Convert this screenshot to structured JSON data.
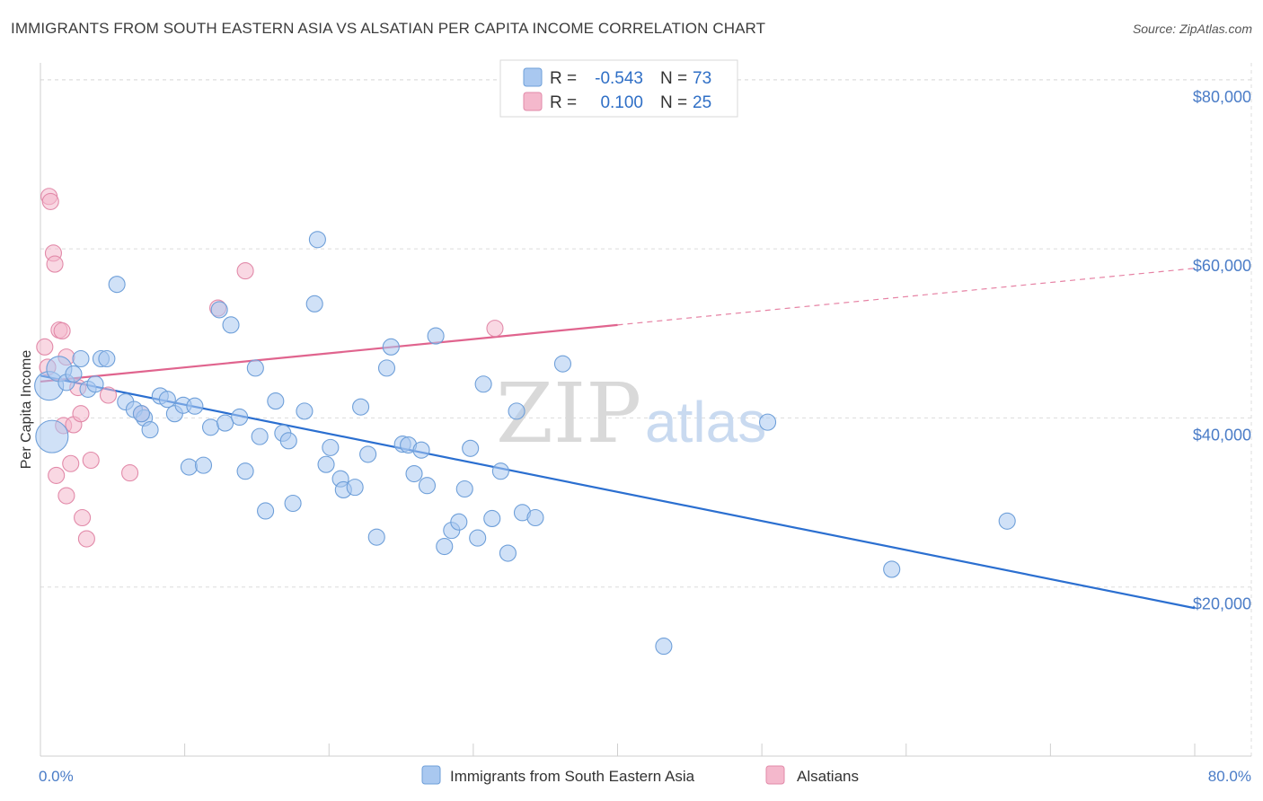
{
  "title": "IMMIGRANTS FROM SOUTH EASTERN ASIA VS ALSATIAN PER CAPITA INCOME CORRELATION CHART",
  "source": "Source: ZipAtlas.com",
  "watermark": {
    "zip": "ZIP",
    "atlas": "atlas"
  },
  "legend": {
    "r_label": "R =",
    "n_label": "N =",
    "rows": [
      {
        "r": "-0.543",
        "n": "73",
        "color": "#a9c8f0"
      },
      {
        "r": "0.100",
        "n": "25",
        "color": "#f4b8cc"
      }
    ]
  },
  "chart_data": {
    "type": "scatter",
    "title": "IMMIGRANTS FROM SOUTH EASTERN ASIA VS ALSATIAN PER CAPITA INCOME CORRELATION CHART",
    "xlabel": "",
    "ylabel": "Per Capita Income",
    "xlim": [
      0,
      80
    ],
    "ylim": [
      0,
      82000
    ],
    "y_ticks": [
      {
        "value": 20000,
        "label": "$20,000"
      },
      {
        "value": 40000,
        "label": "$40,000"
      },
      {
        "value": 60000,
        "label": "$60,000"
      },
      {
        "value": 80000,
        "label": "$80,000"
      }
    ],
    "x_ticks_labels": [
      {
        "value": 0,
        "label": "0.0%"
      },
      {
        "value": 80,
        "label": "80.0%"
      }
    ],
    "grid": true,
    "legend_position": "top-center",
    "series": [
      {
        "name": "Immigrants from South Eastern Asia",
        "color": "#a9c8f0",
        "stroke": "#6e9fd9",
        "trend_color": "#2b6fd0",
        "trend": {
          "x0": 0,
          "y0": 45000,
          "x1": 80,
          "y1": 17500,
          "solid_until": 80
        },
        "points": [
          [
            0.6,
            43800
          ],
          [
            0.8,
            37800
          ],
          [
            1.3,
            45800
          ],
          [
            1.8,
            44200
          ],
          [
            2.3,
            45200
          ],
          [
            2.8,
            47000
          ],
          [
            3.3,
            43400
          ],
          [
            3.8,
            44000
          ],
          [
            4.2,
            47000
          ],
          [
            4.6,
            47000
          ],
          [
            5.3,
            55800
          ],
          [
            5.9,
            41900
          ],
          [
            6.5,
            41000
          ],
          [
            7.2,
            40000
          ],
          [
            7.6,
            38600
          ],
          [
            8.3,
            42600
          ],
          [
            8.8,
            42200
          ],
          [
            9.3,
            40500
          ],
          [
            9.9,
            41500
          ],
          [
            10.3,
            34200
          ],
          [
            10.7,
            41400
          ],
          [
            11.3,
            34400
          ],
          [
            11.8,
            38900
          ],
          [
            12.4,
            52800
          ],
          [
            12.8,
            39400
          ],
          [
            13.2,
            51000
          ],
          [
            13.8,
            40100
          ],
          [
            14.2,
            33700
          ],
          [
            14.9,
            45900
          ],
          [
            15.2,
            37800
          ],
          [
            15.6,
            29000
          ],
          [
            16.3,
            42000
          ],
          [
            16.8,
            38200
          ],
          [
            17.2,
            37300
          ],
          [
            17.5,
            29900
          ],
          [
            18.3,
            40800
          ],
          [
            19.0,
            53500
          ],
          [
            19.2,
            61100
          ],
          [
            19.8,
            34500
          ],
          [
            20.1,
            36500
          ],
          [
            20.8,
            32800
          ],
          [
            21.0,
            31500
          ],
          [
            21.8,
            31800
          ],
          [
            22.2,
            41300
          ],
          [
            22.7,
            35700
          ],
          [
            23.3,
            25900
          ],
          [
            24.0,
            45900
          ],
          [
            24.3,
            48400
          ],
          [
            25.1,
            36900
          ],
          [
            25.5,
            36800
          ],
          [
            25.9,
            33400
          ],
          [
            26.4,
            36200
          ],
          [
            26.8,
            32000
          ],
          [
            27.4,
            49700
          ],
          [
            28.0,
            24800
          ],
          [
            28.5,
            26700
          ],
          [
            29.0,
            27700
          ],
          [
            29.4,
            31600
          ],
          [
            29.8,
            36400
          ],
          [
            30.3,
            25800
          ],
          [
            30.7,
            44000
          ],
          [
            31.3,
            28100
          ],
          [
            31.9,
            33700
          ],
          [
            32.4,
            24000
          ],
          [
            33.0,
            40800
          ],
          [
            33.4,
            28800
          ],
          [
            34.3,
            28200
          ],
          [
            36.2,
            46400
          ],
          [
            43.2,
            13000
          ],
          [
            50.4,
            39500
          ],
          [
            59.0,
            22100
          ],
          [
            67.0,
            27800
          ],
          [
            7.0,
            40500
          ]
        ],
        "sizes": {
          "0.6,43800": 16,
          "0.8,37800": 18,
          "1.3,45800": 14
        }
      },
      {
        "name": "Alsatians",
        "color": "#f4b8cc",
        "stroke": "#e28aa9",
        "trend_color": "#e0648e",
        "trend": {
          "x0": 0,
          "y0": 44300,
          "x1": 80,
          "y1": 57700,
          "solid_until": 40
        },
        "points": [
          [
            0.3,
            48400
          ],
          [
            0.5,
            46000
          ],
          [
            0.6,
            66200
          ],
          [
            0.7,
            65600
          ],
          [
            0.9,
            59500
          ],
          [
            1.0,
            58200
          ],
          [
            1.1,
            33200
          ],
          [
            1.3,
            50400
          ],
          [
            1.5,
            50300
          ],
          [
            1.6,
            39100
          ],
          [
            1.8,
            30800
          ],
          [
            1.8,
            47200
          ],
          [
            2.1,
            34600
          ],
          [
            2.3,
            39200
          ],
          [
            2.6,
            43600
          ],
          [
            2.8,
            40500
          ],
          [
            2.9,
            28200
          ],
          [
            3.2,
            25700
          ],
          [
            3.5,
            35000
          ],
          [
            4.7,
            42700
          ],
          [
            6.2,
            33500
          ],
          [
            7.0,
            40500
          ],
          [
            12.3,
            53000
          ],
          [
            14.2,
            57400
          ],
          [
            31.5,
            50600
          ]
        ]
      }
    ]
  },
  "bottom_legend": [
    {
      "label": "Immigrants from South Eastern Asia",
      "color": "#a9c8f0",
      "stroke": "#6e9fd9"
    },
    {
      "label": "Alsatians",
      "color": "#f4b8cc",
      "stroke": "#e28aa9"
    }
  ]
}
